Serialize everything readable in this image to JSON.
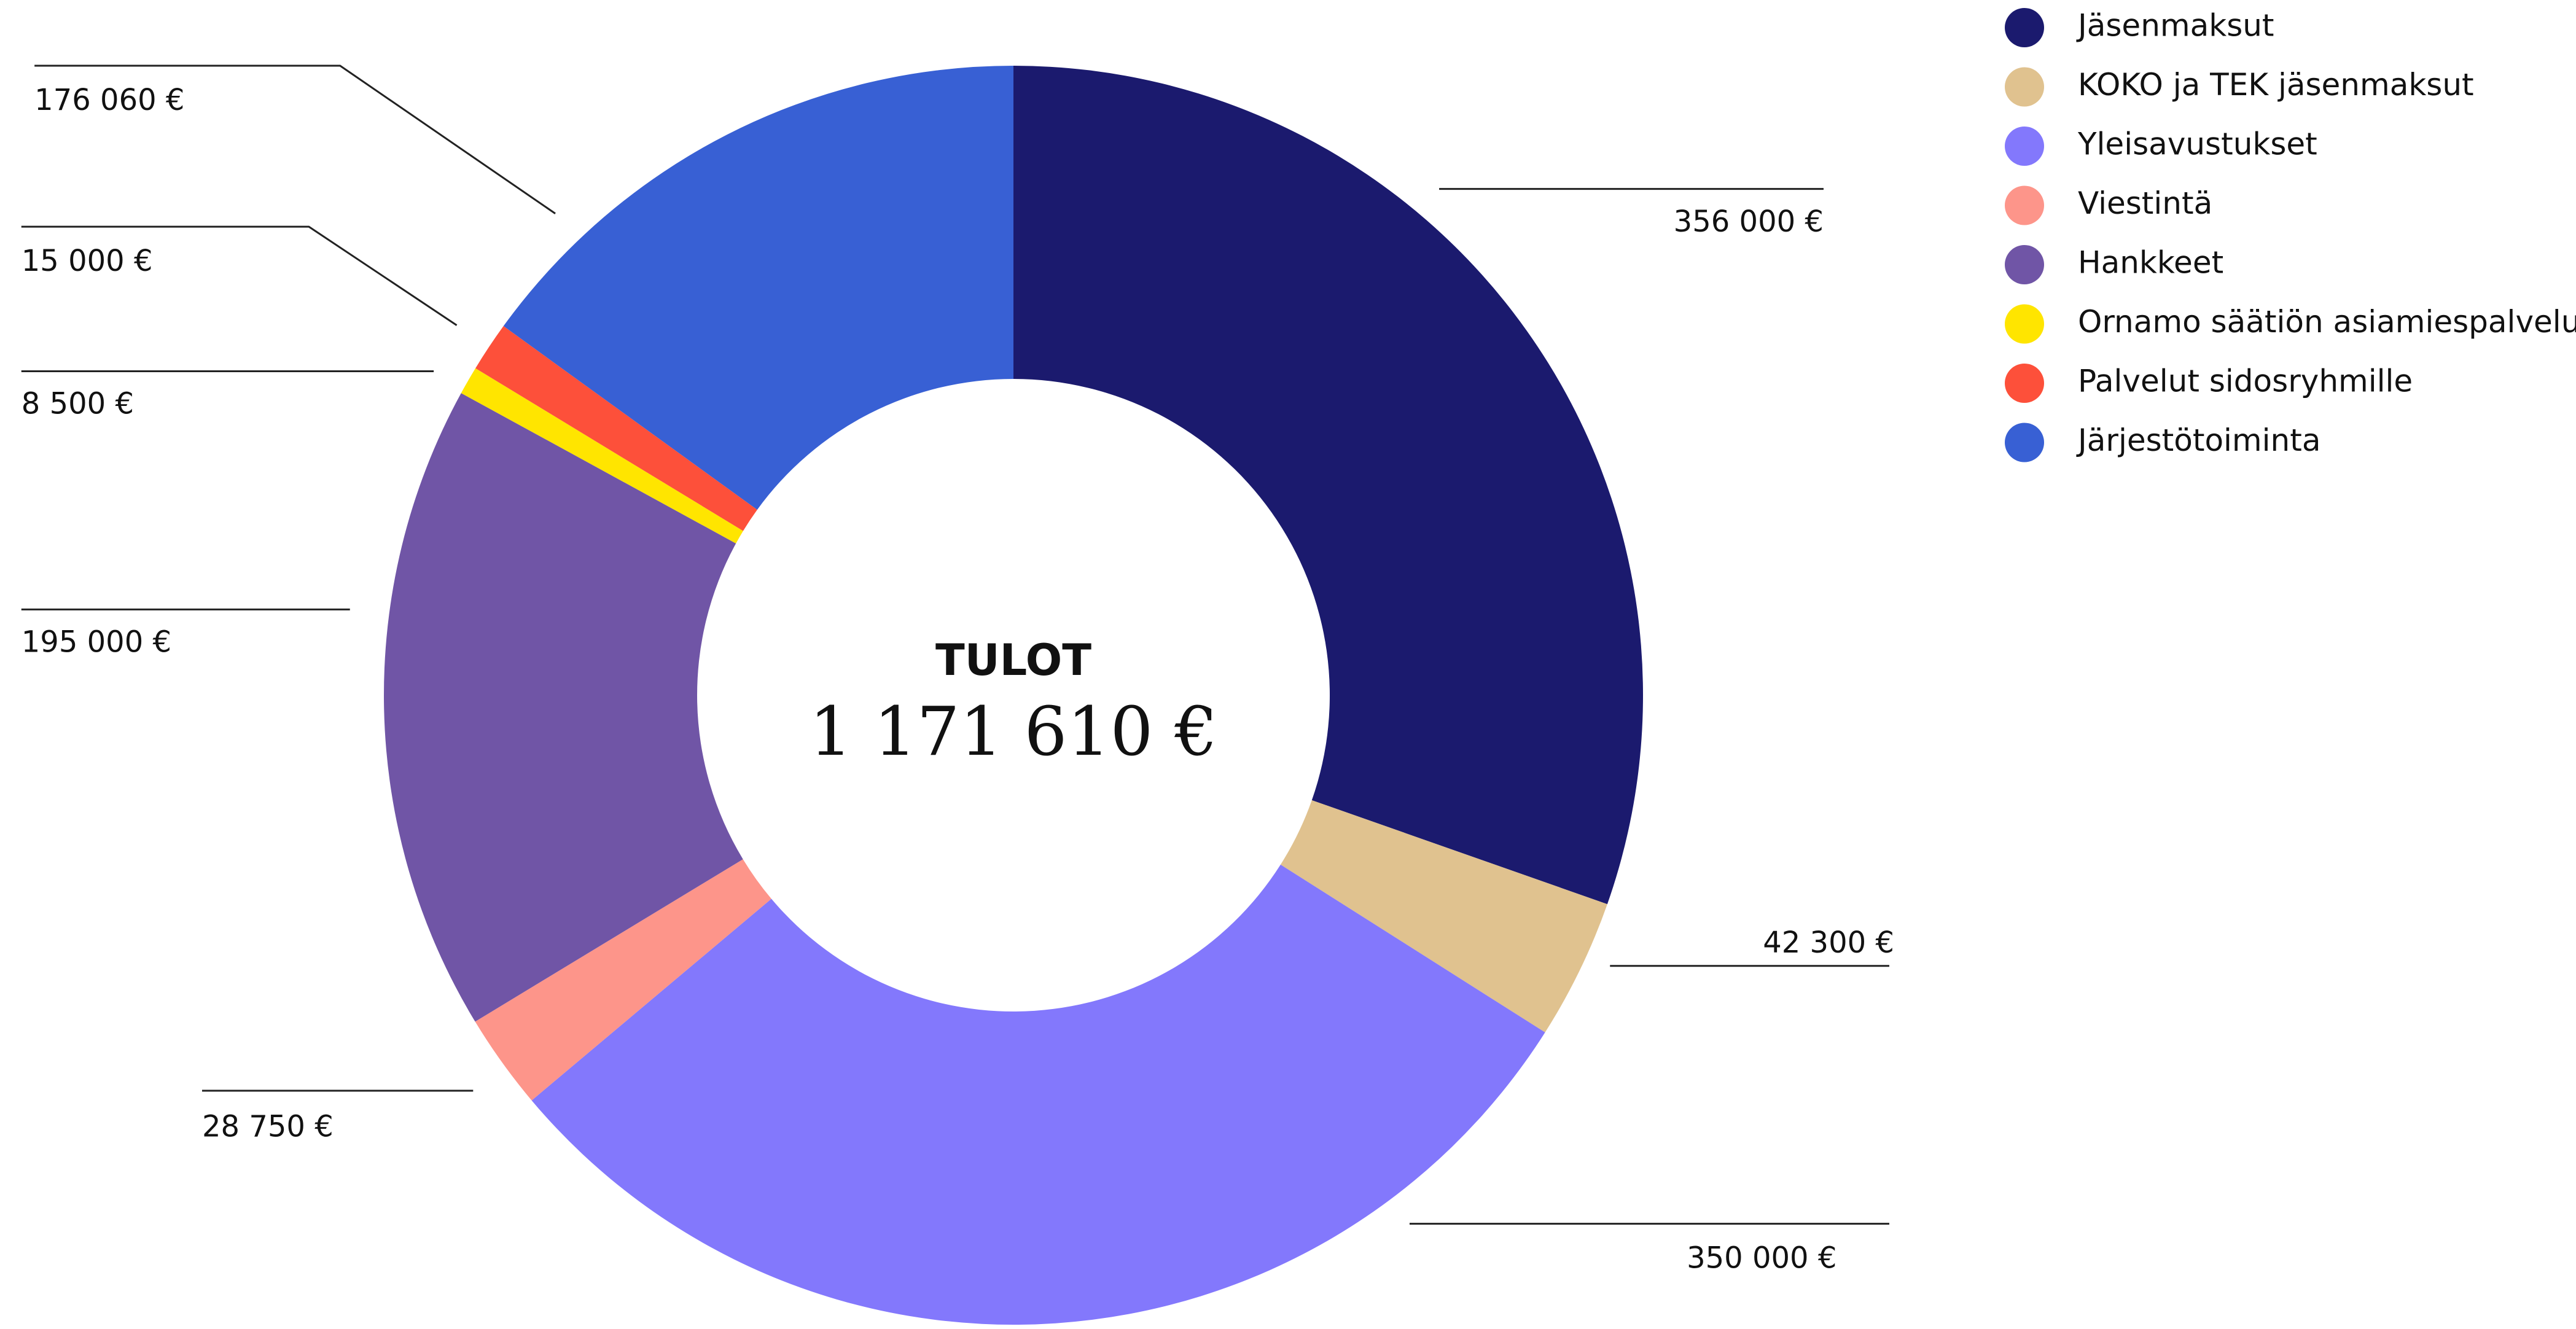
{
  "chart_data": {
    "type": "donut",
    "center_title": "TULOT",
    "center_value": "1 171 610 €",
    "categories": [
      "Jäsenmaksut",
      "KOKO ja TEK jäsenmaksut",
      "Yleisavustukset",
      "Viestintä",
      "Hankkeet",
      "Ornamo säätiön asiamiespalvelu",
      "Palvelut sidosryhmille",
      "Järjestötoiminta"
    ],
    "values": [
      356000,
      42300,
      350000,
      28750,
      195000,
      8500,
      15000,
      176060
    ],
    "value_labels": [
      "356 000 €",
      "42 300 €",
      "350 000 €",
      "28 750 €",
      "195 000 €",
      "8 500 €",
      "15 000 €",
      "176 060 €"
    ],
    "colors": [
      "#1b1a6e",
      "#e0c28f",
      "#8378fc",
      "#fd958a",
      "#7055a6",
      "#ffe500",
      "#fd503a",
      "#3860d4"
    ],
    "legend": "top-right"
  }
}
